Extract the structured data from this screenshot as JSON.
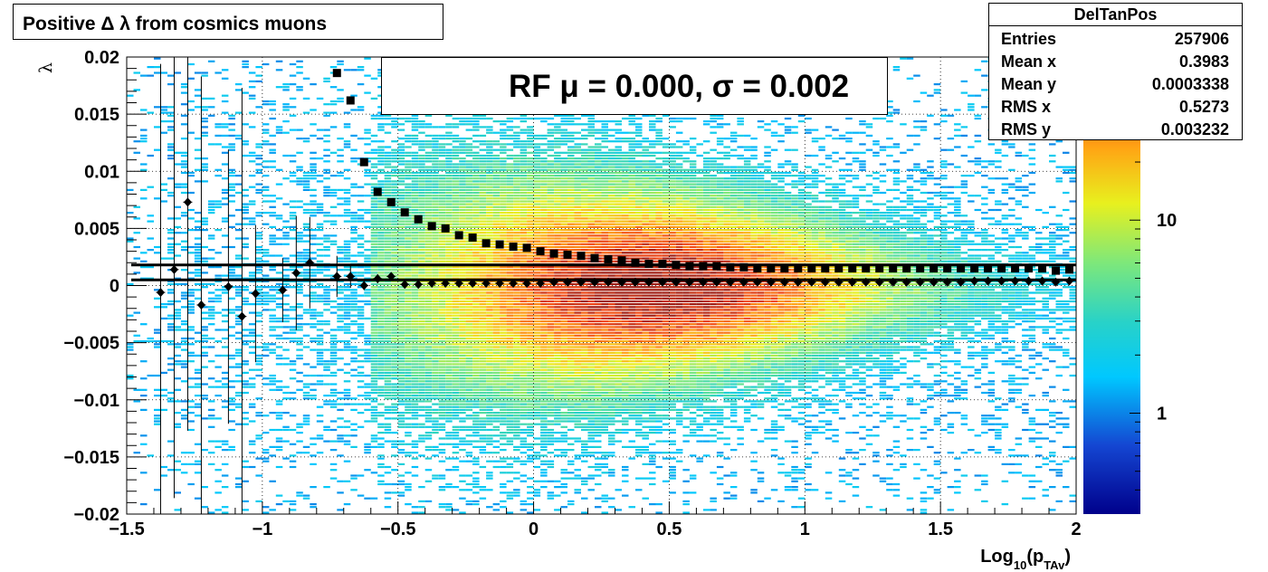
{
  "title": "Positive Δ λ from cosmics muons",
  "stats": {
    "name": "DelTanPos",
    "rows": [
      {
        "key": "Entries",
        "value": "257906"
      },
      {
        "key": "Mean x",
        "value": "0.3983"
      },
      {
        "key": "Mean y",
        "value": "0.0003338"
      },
      {
        "key": "RMS x",
        "value": "0.5273"
      },
      {
        "key": "RMS y",
        "value": "0.003232"
      }
    ]
  },
  "legend": {
    "label": "RF μ =  0.000, σ =   0.002"
  },
  "colors": {
    "fit_line": "#000000",
    "markers": "#000000",
    "grid": "#000000"
  },
  "chart_data": {
    "type": "heatmap",
    "xlabel_main": "Log",
    "xlabel_sub": "10",
    "xlabel_mid": "(p",
    "xlabel_sub2": "TAv",
    "xlabel_end": ")",
    "ylabel": "λ",
    "xlim": [
      -1.5,
      2
    ],
    "ylim": [
      -0.02,
      0.02
    ],
    "x_ticks": [
      -1.5,
      -1,
      -0.5,
      0,
      0.5,
      1,
      1.5,
      2
    ],
    "x_tick_labels": [
      "−1.5",
      "−1",
      "−0.5",
      "0",
      "0.5",
      "1",
      "1.5",
      "2"
    ],
    "y_ticks": [
      -0.02,
      -0.015,
      -0.01,
      -0.005,
      0,
      0.005,
      0.01,
      0.015,
      0.02
    ],
    "y_tick_labels": [
      "−0.02",
      "−0.015",
      "−0.01",
      "−0.005",
      "0",
      "0.005",
      "0.01",
      "0.015",
      "0.02"
    ],
    "grid": true,
    "z_log_scale": true,
    "colorbar_ticks": [
      1,
      10
    ],
    "colorbar_tick_labels": [
      "1",
      "10"
    ],
    "colorbar_range": [
      0.3,
      70
    ],
    "heatmap_description": "Density concentrated near y=0, peaking around x=0.2 to 0.8, spreading wider at low x; sparse entries below x=-0.6",
    "fit_lines": [
      {
        "name": "upper",
        "y": 0.0018
      },
      {
        "name": "lower",
        "y": 0.0005
      }
    ],
    "series": [
      {
        "name": "mean (diamonds)",
        "marker": "diamond",
        "points": [
          {
            "x": -1.375,
            "y": -0.0006,
            "err": 0.02
          },
          {
            "x": -1.325,
            "y": 0.0014,
            "err": 0.02
          },
          {
            "x": -1.275,
            "y": 0.0073,
            "err": 0.02
          },
          {
            "x": -1.225,
            "y": -0.0017,
            "err": 0.02
          },
          {
            "x": -1.125,
            "y": -0.0001,
            "err": 0.012
          },
          {
            "x": -1.075,
            "y": -0.0027,
            "err": 0.02
          },
          {
            "x": -1.025,
            "y": -0.0007,
            "err": 0.006
          },
          {
            "x": -0.925,
            "y": -0.0004,
            "err": 0.0028
          },
          {
            "x": -0.875,
            "y": 0.0011,
            "err": 0.005
          },
          {
            "x": -0.825,
            "y": 0.002,
            "err": 0.004
          },
          {
            "x": -0.725,
            "y": 0.0008,
            "err": 0.0018
          },
          {
            "x": -0.675,
            "y": 0.0008,
            "err": 0.001
          },
          {
            "x": -0.625,
            "y": 0.0,
            "err": 0.0004
          },
          {
            "x": -0.575,
            "y": 0.0006,
            "err": 0.0004
          },
          {
            "x": -0.525,
            "y": 0.0008,
            "err": 0.0003
          },
          {
            "x": -0.475,
            "y": 0.0001,
            "err": 0.0002
          },
          {
            "x": -0.425,
            "y": 0.0001,
            "err": 0.0002
          },
          {
            "x": -0.375,
            "y": 0.0002,
            "err": 0.0001
          },
          {
            "x": -0.325,
            "y": 0.0002,
            "err": 0.0001
          },
          {
            "x": -0.275,
            "y": 0.0002,
            "err": 0.0001
          },
          {
            "x": -0.225,
            "y": 0.0002,
            "err": 0.0001
          },
          {
            "x": -0.175,
            "y": 0.0002,
            "err": 0.0001
          },
          {
            "x": -0.125,
            "y": 0.0002,
            "err": 0.0001
          },
          {
            "x": -0.075,
            "y": 0.0002,
            "err": 0.0001
          },
          {
            "x": -0.025,
            "y": 0.0002,
            "err": 0.0001
          },
          {
            "x": 0.025,
            "y": 0.0002,
            "err": 0.0001
          },
          {
            "x": 0.075,
            "y": 0.0003,
            "err": 0.0001
          },
          {
            "x": 0.125,
            "y": 0.0003,
            "err": 0.0001
          },
          {
            "x": 0.175,
            "y": 0.0003,
            "err": 0.0001
          },
          {
            "x": 0.225,
            "y": 0.0003,
            "err": 0.0001
          },
          {
            "x": 0.275,
            "y": 0.0003,
            "err": 0.0001
          },
          {
            "x": 0.325,
            "y": 0.0003,
            "err": 0.0001
          },
          {
            "x": 0.375,
            "y": 0.0003,
            "err": 0.0001
          },
          {
            "x": 0.425,
            "y": 0.0003,
            "err": 0.0001
          },
          {
            "x": 0.475,
            "y": 0.0003,
            "err": 0.0001
          },
          {
            "x": 0.525,
            "y": 0.0003,
            "err": 0.0001
          },
          {
            "x": 0.575,
            "y": 0.0003,
            "err": 0.0001
          },
          {
            "x": 0.625,
            "y": 0.0003,
            "err": 0.0001
          },
          {
            "x": 0.675,
            "y": 0.0003,
            "err": 0.0001
          },
          {
            "x": 0.725,
            "y": 0.0003,
            "err": 0.0001
          },
          {
            "x": 0.775,
            "y": 0.0003,
            "err": 0.0001
          },
          {
            "x": 0.825,
            "y": 0.0003,
            "err": 0.0001
          },
          {
            "x": 0.875,
            "y": 0.0003,
            "err": 0.0001
          },
          {
            "x": 0.925,
            "y": 0.0003,
            "err": 0.0001
          },
          {
            "x": 0.975,
            "y": 0.0003,
            "err": 0.0001
          },
          {
            "x": 1.025,
            "y": 0.0003,
            "err": 0.0001
          },
          {
            "x": 1.075,
            "y": 0.0003,
            "err": 0.0001
          },
          {
            "x": 1.125,
            "y": 0.0003,
            "err": 0.0001
          },
          {
            "x": 1.175,
            "y": 0.0003,
            "err": 0.0001
          },
          {
            "x": 1.225,
            "y": 0.0003,
            "err": 0.0001
          },
          {
            "x": 1.275,
            "y": 0.0003,
            "err": 0.0001
          },
          {
            "x": 1.325,
            "y": 0.0003,
            "err": 0.0001
          },
          {
            "x": 1.375,
            "y": 0.0003,
            "err": 0.0001
          },
          {
            "x": 1.425,
            "y": 0.0003,
            "err": 0.0001
          },
          {
            "x": 1.475,
            "y": 0.0003,
            "err": 0.0001
          },
          {
            "x": 1.525,
            "y": 0.0003,
            "err": 0.0001
          },
          {
            "x": 1.575,
            "y": 0.0003,
            "err": 0.0001
          },
          {
            "x": 1.625,
            "y": 0.0004,
            "err": 0.0001
          },
          {
            "x": 1.675,
            "y": 0.0004,
            "err": 0.0001
          },
          {
            "x": 1.725,
            "y": 0.0004,
            "err": 0.0001
          },
          {
            "x": 1.775,
            "y": 0.0004,
            "err": 0.0001
          },
          {
            "x": 1.825,
            "y": 0.0004,
            "err": 0.0001
          },
          {
            "x": 1.875,
            "y": 0.0004,
            "err": 0.0001
          },
          {
            "x": 1.925,
            "y": 0.0003,
            "err": 0.0001
          },
          {
            "x": 1.975,
            "y": 0.0004,
            "err": 0.0001
          }
        ]
      },
      {
        "name": "rms (squares)",
        "marker": "square",
        "points": [
          {
            "x": -0.725,
            "y": 0.0186
          },
          {
            "x": -0.675,
            "y": 0.0162
          },
          {
            "x": -0.625,
            "y": 0.0108
          },
          {
            "x": -0.575,
            "y": 0.0082
          },
          {
            "x": -0.525,
            "y": 0.0073
          },
          {
            "x": -0.475,
            "y": 0.0064
          },
          {
            "x": -0.425,
            "y": 0.0058
          },
          {
            "x": -0.375,
            "y": 0.0052
          },
          {
            "x": -0.325,
            "y": 0.005
          },
          {
            "x": -0.275,
            "y": 0.0044
          },
          {
            "x": -0.225,
            "y": 0.0042
          },
          {
            "x": -0.175,
            "y": 0.0037
          },
          {
            "x": -0.125,
            "y": 0.0036
          },
          {
            "x": -0.075,
            "y": 0.0034
          },
          {
            "x": -0.025,
            "y": 0.0033
          },
          {
            "x": 0.025,
            "y": 0.003
          },
          {
            "x": 0.075,
            "y": 0.0028
          },
          {
            "x": 0.125,
            "y": 0.0027
          },
          {
            "x": 0.175,
            "y": 0.0026
          },
          {
            "x": 0.225,
            "y": 0.0024
          },
          {
            "x": 0.275,
            "y": 0.0023
          },
          {
            "x": 0.325,
            "y": 0.0022
          },
          {
            "x": 0.375,
            "y": 0.002
          },
          {
            "x": 0.425,
            "y": 0.0019
          },
          {
            "x": 0.475,
            "y": 0.0019
          },
          {
            "x": 0.525,
            "y": 0.0018
          },
          {
            "x": 0.575,
            "y": 0.0017
          },
          {
            "x": 0.625,
            "y": 0.0017
          },
          {
            "x": 0.675,
            "y": 0.0017
          },
          {
            "x": 0.725,
            "y": 0.0016
          },
          {
            "x": 0.775,
            "y": 0.0016
          },
          {
            "x": 0.825,
            "y": 0.0015
          },
          {
            "x": 0.875,
            "y": 0.0015
          },
          {
            "x": 0.925,
            "y": 0.0015
          },
          {
            "x": 0.975,
            "y": 0.0015
          },
          {
            "x": 1.025,
            "y": 0.0015
          },
          {
            "x": 1.075,
            "y": 0.0015
          },
          {
            "x": 1.125,
            "y": 0.0015
          },
          {
            "x": 1.175,
            "y": 0.0015
          },
          {
            "x": 1.225,
            "y": 0.0015
          },
          {
            "x": 1.275,
            "y": 0.0015
          },
          {
            "x": 1.325,
            "y": 0.0015
          },
          {
            "x": 1.375,
            "y": 0.0015
          },
          {
            "x": 1.425,
            "y": 0.0015
          },
          {
            "x": 1.475,
            "y": 0.0015
          },
          {
            "x": 1.525,
            "y": 0.0015
          },
          {
            "x": 1.575,
            "y": 0.0015
          },
          {
            "x": 1.625,
            "y": 0.0015
          },
          {
            "x": 1.675,
            "y": 0.0015
          },
          {
            "x": 1.725,
            "y": 0.0015
          },
          {
            "x": 1.775,
            "y": 0.0015
          },
          {
            "x": 1.825,
            "y": 0.0015
          },
          {
            "x": 1.875,
            "y": 0.0015
          },
          {
            "x": 1.925,
            "y": 0.0013
          },
          {
            "x": 1.975,
            "y": 0.0014
          }
        ]
      }
    ]
  }
}
